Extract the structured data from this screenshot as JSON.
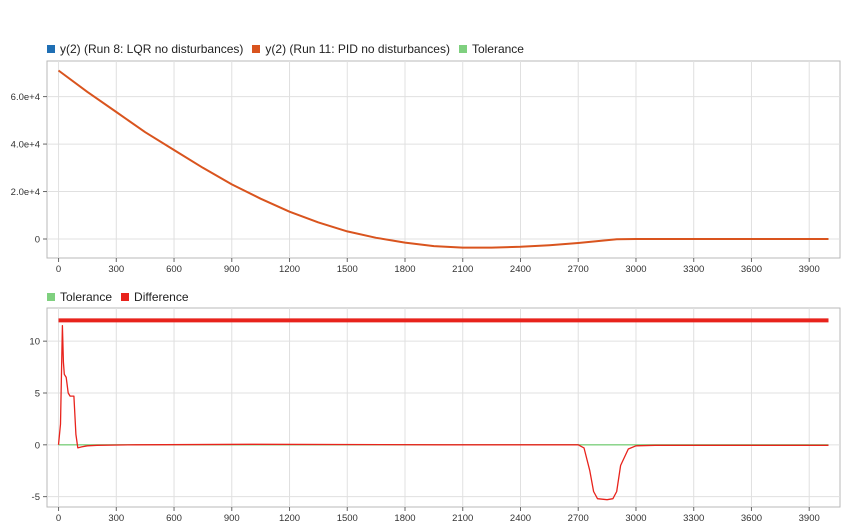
{
  "chart_data": [
    {
      "type": "line",
      "legend": [
        {
          "name": "y(2) (Run 8: LQR no disturbances)",
          "color": "#1f6fb4"
        },
        {
          "name": "y(2) (Run 11: PID no disturbances)",
          "color": "#d9541e"
        },
        {
          "name": "Tolerance",
          "color": "#7fd07f"
        }
      ],
      "xlim": [
        -60,
        4060
      ],
      "ylim": [
        -8000,
        75000
      ],
      "x_ticks": [
        "0",
        "300",
        "600",
        "900",
        "1200",
        "1500",
        "1800",
        "2100",
        "2400",
        "2700",
        "3000",
        "3300",
        "3600",
        "3900"
      ],
      "y_ticks": [
        {
          "v": 60000,
          "label": "6.0e+4"
        },
        {
          "v": 40000,
          "label": "4.0e+4"
        },
        {
          "v": 20000,
          "label": "2.0e+4"
        },
        {
          "v": 0,
          "label": "0"
        }
      ],
      "grid": true,
      "legend_position": "top-left",
      "series": [
        {
          "name": "y(2) (Run 11: PID no disturbances)",
          "color": "#d9541e",
          "x": [
            0,
            150,
            300,
            450,
            600,
            750,
            900,
            1050,
            1200,
            1350,
            1500,
            1650,
            1800,
            1950,
            2100,
            2250,
            2400,
            2550,
            2700,
            2800,
            2900,
            3000,
            3300,
            3600,
            3900,
            4000
          ],
          "y": [
            71000,
            62000,
            53500,
            45000,
            37500,
            30000,
            23000,
            17000,
            11500,
            7000,
            3200,
            500,
            -1500,
            -3000,
            -3600,
            -3600,
            -3300,
            -2600,
            -1700,
            -900,
            -100,
            0,
            0,
            0,
            0,
            0
          ]
        }
      ]
    },
    {
      "type": "line",
      "legend": [
        {
          "name": "Tolerance",
          "color": "#7fd07f"
        },
        {
          "name": "Difference",
          "color": "#e8231c"
        }
      ],
      "xlim": [
        -60,
        4060
      ],
      "ylim": [
        -6,
        13.2
      ],
      "x_ticks": [
        "0",
        "300",
        "600",
        "900",
        "1200",
        "1500",
        "1800",
        "2100",
        "2400",
        "2700",
        "3000",
        "3300",
        "3600",
        "3900"
      ],
      "y_ticks": [
        {
          "v": 10,
          "label": "10"
        },
        {
          "v": 5,
          "label": "5"
        },
        {
          "v": 0,
          "label": "0"
        },
        {
          "v": -5,
          "label": "-5"
        }
      ],
      "grid": true,
      "legend_position": "top-left",
      "series": [
        {
          "name": "Tolerance",
          "color": "#7fd07f",
          "x": [
            0,
            4000
          ],
          "y": [
            0,
            0
          ]
        },
        {
          "name": "Difference",
          "color": "#e8231c",
          "x": [
            0,
            10,
            20,
            25,
            30,
            40,
            50,
            60,
            70,
            80,
            90,
            100,
            120,
            150,
            200,
            400,
            1000,
            2000,
            2600,
            2700,
            2730,
            2760,
            2780,
            2800,
            2850,
            2880,
            2900,
            2920,
            2960,
            3000,
            3100,
            4000
          ],
          "y": [
            0,
            2,
            11.5,
            8,
            6.8,
            6.5,
            5,
            4.7,
            4.7,
            4.7,
            1,
            -0.3,
            -0.2,
            -0.1,
            -0.05,
            0,
            0.05,
            0,
            0,
            0,
            -0.3,
            -2.5,
            -4.5,
            -5.2,
            -5.3,
            -5.2,
            -4.5,
            -2,
            -0.4,
            -0.1,
            -0.05,
            -0.05
          ]
        },
        {
          "name": "Difference",
          "color": "#e8231c",
          "x": [
            0,
            4000
          ],
          "y": [
            12,
            12
          ]
        }
      ]
    }
  ]
}
